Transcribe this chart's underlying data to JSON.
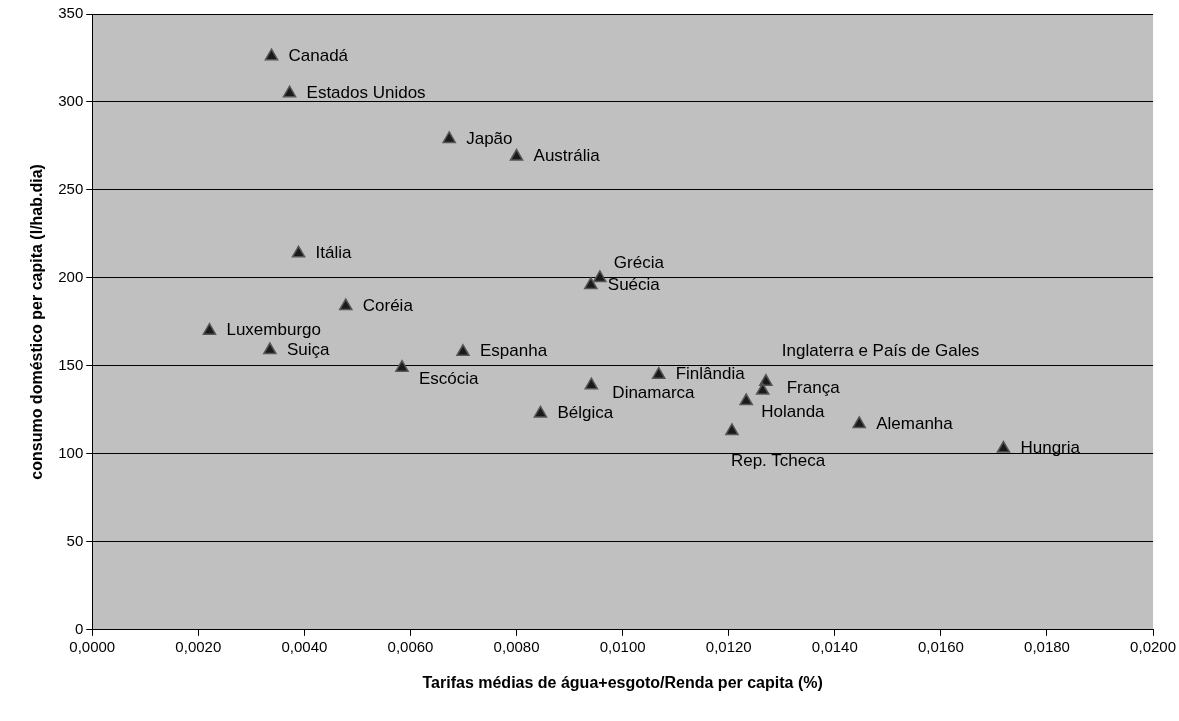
{
  "chart_data": {
    "type": "scatter",
    "xlabel": "Tarifas médias de água+esgoto/Renda per capita (%)",
    "ylabel": "consumo doméstico per capita (l/hab.dia)",
    "series": [
      {
        "color": "#1a1a1a",
        "x": [
          0.00338,
          0.00372,
          0.00673,
          0.008,
          0.00389,
          0.00957,
          0.0094,
          0.00478,
          0.00221,
          0.00335,
          0.00584,
          0.00699,
          0.00941,
          0.00845,
          0.01068,
          0.0127,
          0.01264,
          0.01233,
          0.01206,
          0.01446,
          0.01718
        ],
        "values": [
          326,
          305,
          279,
          269,
          214,
          200,
          196,
          184,
          170,
          159,
          149,
          158,
          139,
          123,
          145,
          141,
          136,
          130,
          113,
          117,
          103
        ]
      }
    ],
    "annotations": [
      {
        "text": "Canadá",
        "x": 0.00338,
        "y": 326
      },
      {
        "text": "Estados Unidos",
        "x": 0.00372,
        "y": 305
      },
      {
        "text": "Japão",
        "x": 0.00673,
        "y": 279
      },
      {
        "text": "Austrália",
        "x": 0.008,
        "y": 269
      },
      {
        "text": "Itália",
        "x": 0.00389,
        "y": 214
      },
      {
        "text": "Grécia",
        "x": 0.00957,
        "y": 200
      },
      {
        "text": "Suécia",
        "x": 0.0094,
        "y": 196
      },
      {
        "text": "Coréia",
        "x": 0.00478,
        "y": 184
      },
      {
        "text": "Luxemburgo",
        "x": 0.00221,
        "y": 170
      },
      {
        "text": "Suiça",
        "x": 0.00335,
        "y": 159
      },
      {
        "text": "Escócia",
        "x": 0.00584,
        "y": 149
      },
      {
        "text": "Espanha",
        "x": 0.00699,
        "y": 158
      },
      {
        "text": "Dinamarca",
        "x": 0.00941,
        "y": 139
      },
      {
        "text": "Bélgica",
        "x": 0.00845,
        "y": 123
      },
      {
        "text": "Finlândia",
        "x": 0.01068,
        "y": 145
      },
      {
        "text": "Inglaterra e País de Gales",
        "x": 0.0127,
        "y": 141
      },
      {
        "text": "França",
        "x": 0.01264,
        "y": 136
      },
      {
        "text": "Holanda",
        "x": 0.01233,
        "y": 130
      },
      {
        "text": "Rep. Tcheca",
        "x": 0.01206,
        "y": 113
      },
      {
        "text": "Alemanha",
        "x": 0.01446,
        "y": 117
      },
      {
        "text": "Hungria",
        "x": 0.01718,
        "y": 103
      }
    ],
    "xlim": [
      0,
      0.02
    ],
    "xticks": [
      {
        "value": 0,
        "label": "0,0000"
      },
      {
        "value": 0.002,
        "label": "0,0020"
      },
      {
        "value": 0.004,
        "label": "0,0040"
      },
      {
        "value": 0.006,
        "label": "0,0060"
      },
      {
        "value": 0.008,
        "label": "0,0080"
      },
      {
        "value": 0.01,
        "label": "0,0100"
      },
      {
        "value": 0.012,
        "label": "0,0120"
      },
      {
        "value": 0.014,
        "label": "0,0140"
      },
      {
        "value": 0.016,
        "label": "0,0160"
      },
      {
        "value": 0.018,
        "label": "0,0180"
      },
      {
        "value": 0.02,
        "label": "0,0200"
      }
    ],
    "ylim": [
      0,
      350
    ],
    "yticks": [
      0,
      50,
      100,
      150,
      200,
      250,
      300,
      350
    ],
    "grid": "y",
    "legend": false,
    "marker": "triangle"
  }
}
